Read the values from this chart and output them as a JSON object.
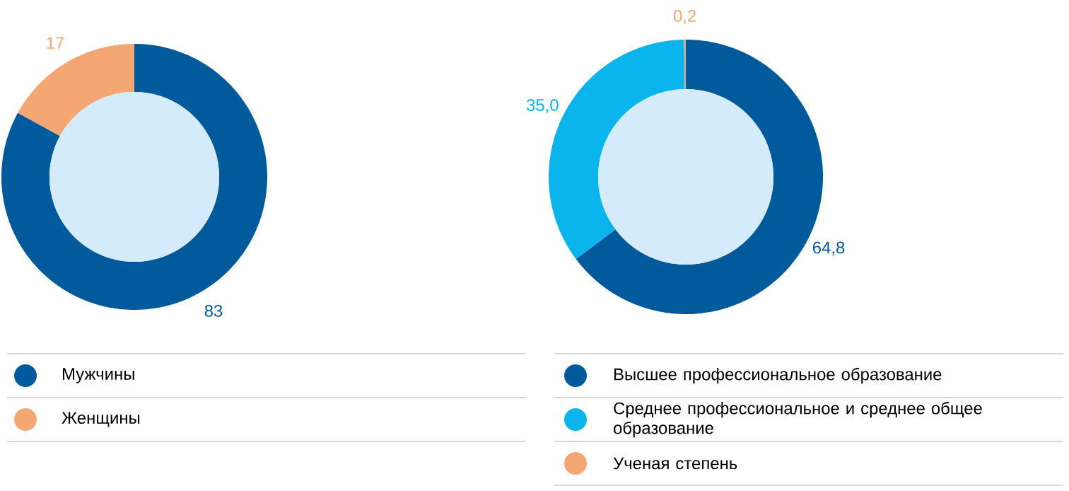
{
  "chart_data": [
    {
      "type": "donut",
      "categories": [
        "Мужчины",
        "Женщины"
      ],
      "values": [
        83,
        17
      ],
      "colors": [
        "#005a9c",
        "#f4a772"
      ],
      "value_labels": [
        "83",
        "17"
      ],
      "legend": "bottom"
    },
    {
      "type": "donut",
      "categories": [
        "Высшее профессиональное образование",
        "Среднее профессиональное и среднее общее образование",
        "Ученая степень"
      ],
      "values": [
        64.8,
        35.0,
        0.2
      ],
      "colors": [
        "#005a9c",
        "#0ab4ec",
        "#f4a772"
      ],
      "value_labels": [
        "64,8",
        "35,0",
        "0,2"
      ],
      "legend": "bottom"
    }
  ]
}
